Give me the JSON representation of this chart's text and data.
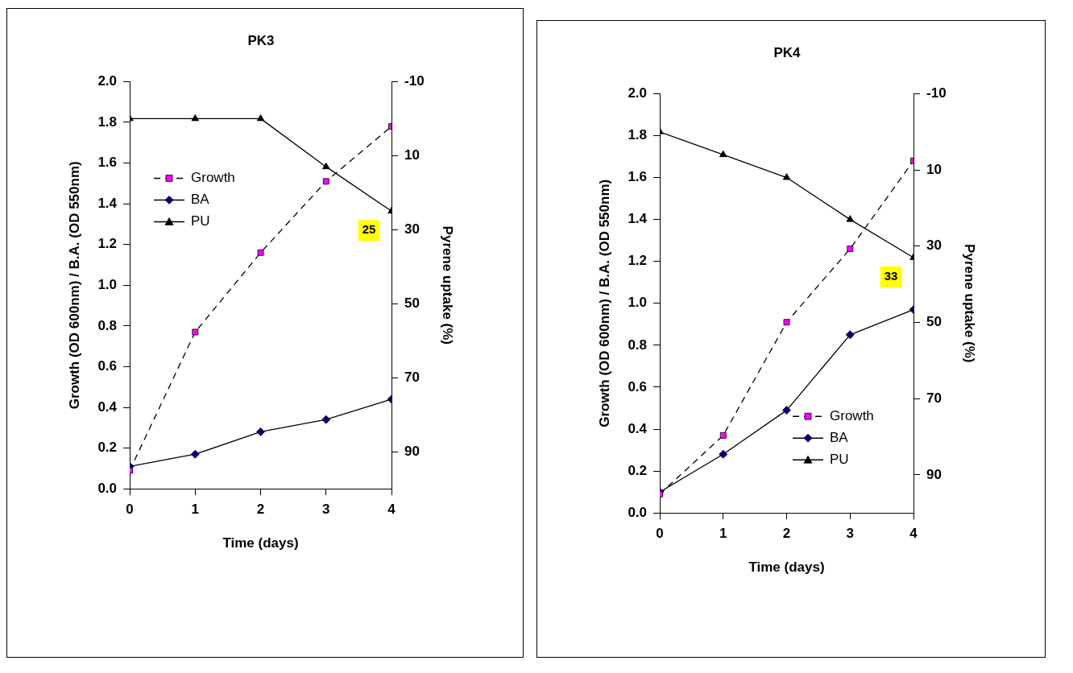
{
  "chart_data": [
    {
      "type": "line",
      "title": "PK3",
      "xlabel": "Time (days)",
      "ylabel": "Growth (OD 600nm) / B.A. (OD 550nm)",
      "y2label": "Pyrene uptake (%)",
      "x": [
        0,
        1,
        2,
        3,
        4
      ],
      "xlim": [
        0,
        4
      ],
      "xticks": [
        0,
        1,
        2,
        3,
        4
      ],
      "ylim": [
        0,
        2
      ],
      "yticks": [
        {
          "value": 0,
          "label": "0.0"
        },
        {
          "value": 0.2,
          "label": "0.2"
        },
        {
          "value": 0.4,
          "label": "0.4"
        },
        {
          "value": 0.6,
          "label": "0.6"
        },
        {
          "value": 0.8,
          "label": "0.8"
        },
        {
          "value": 1,
          "label": "1.0"
        },
        {
          "value": 1.2,
          "label": "1.2"
        },
        {
          "value": 1.4,
          "label": "1.4"
        },
        {
          "value": 1.6,
          "label": "1.6"
        },
        {
          "value": 1.8,
          "label": "1.8"
        },
        {
          "value": 2,
          "label": "2.0"
        }
      ],
      "y2lim": [
        100,
        -10
      ],
      "y2ticks": [
        -10,
        10,
        30,
        50,
        70,
        90
      ],
      "grid": false,
      "legend": "top left",
      "series": [
        {
          "name": "Growth",
          "color": "#ff00ff",
          "marker": "square",
          "line_style": "dashed",
          "values": [
            0.09,
            0.77,
            1.16,
            1.51,
            1.78
          ]
        },
        {
          "name": "BA",
          "color": "#000080",
          "marker": "diamond",
          "line_style": "solid",
          "values": [
            0.11,
            0.17,
            0.28,
            0.34,
            0.44
          ]
        },
        {
          "name": "PU",
          "color": "#000000",
          "marker": "triangle",
          "line_style": "solid",
          "axis": "y2",
          "values": [
            0,
            0,
            0,
            13,
            25
          ],
          "value_labels": [
            null,
            null,
            null,
            null,
            "25"
          ]
        }
      ]
    },
    {
      "type": "line",
      "title": "PK4",
      "xlabel": "Time (days)",
      "ylabel": "Growth (OD 600nm) / B.A. (OD 550nm)",
      "y2label": "Pyrene uptake (%)",
      "x": [
        0,
        1,
        2,
        3,
        4
      ],
      "xlim": [
        0,
        4
      ],
      "xticks": [
        0,
        1,
        2,
        3,
        4
      ],
      "ylim": [
        0,
        2
      ],
      "yticks": [
        {
          "value": 0,
          "label": "0.0"
        },
        {
          "value": 0.2,
          "label": "0.2"
        },
        {
          "value": 0.4,
          "label": "0.4"
        },
        {
          "value": 0.6,
          "label": "0.6"
        },
        {
          "value": 0.8,
          "label": "0.8"
        },
        {
          "value": 1,
          "label": "1.0"
        },
        {
          "value": 1.2,
          "label": "1.2"
        },
        {
          "value": 1.4,
          "label": "1.4"
        },
        {
          "value": 1.6,
          "label": "1.6"
        },
        {
          "value": 1.8,
          "label": "1.8"
        },
        {
          "value": 2,
          "label": "2.0"
        }
      ],
      "y2lim": [
        100,
        -10
      ],
      "y2ticks": [
        -10,
        10,
        30,
        50,
        70,
        90
      ],
      "grid": false,
      "legend": "bottom right",
      "series": [
        {
          "name": "Growth",
          "color": "#ff00ff",
          "marker": "square",
          "line_style": "dashed",
          "values": [
            0.09,
            0.37,
            0.91,
            1.26,
            1.68
          ]
        },
        {
          "name": "BA",
          "color": "#000080",
          "marker": "diamond",
          "line_style": "solid",
          "values": [
            0.1,
            0.28,
            0.49,
            0.85,
            0.97
          ]
        },
        {
          "name": "PU",
          "color": "#000000",
          "marker": "triangle",
          "line_style": "solid",
          "axis": "y2",
          "values": [
            0,
            6,
            12,
            23,
            33
          ],
          "value_labels": [
            null,
            null,
            null,
            null,
            "33"
          ]
        }
      ]
    }
  ]
}
